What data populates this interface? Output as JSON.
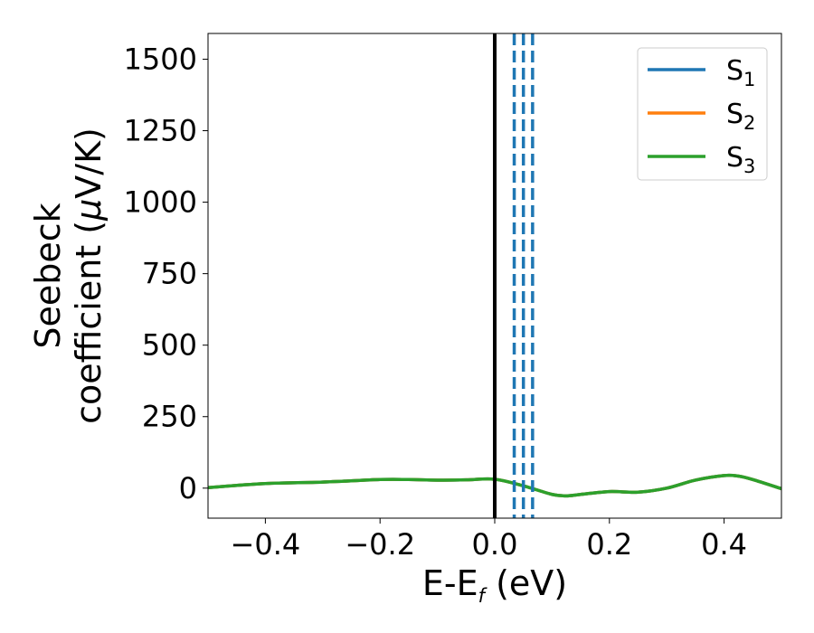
{
  "chart_data": {
    "type": "line",
    "xlabel_main": "E-E",
    "xlabel_sub": "f",
    "xlabel_unit": " (eV)",
    "ylabel_line1": "Seebeck",
    "ylabel_line2_prefix": "coefficient  (",
    "ylabel_mu": "μ",
    "ylabel_line2_suffix": "V/K)",
    "xlim": [
      -0.5,
      0.5
    ],
    "ylim": [
      -105,
      1590
    ],
    "x_ticks": [
      -0.4,
      -0.2,
      0.0,
      0.2,
      0.4
    ],
    "x_tick_labels": [
      "−0.4",
      "−0.2",
      "0.0",
      "0.2",
      "0.4"
    ],
    "y_ticks": [
      0,
      250,
      500,
      750,
      1000,
      1250,
      1500
    ],
    "y_tick_labels": [
      "0",
      "250",
      "500",
      "750",
      "1000",
      "1250",
      "1500"
    ],
    "grid": false,
    "legend_position": "top-right",
    "series": [
      {
        "name": "S",
        "name_sub": "1",
        "color": "#1f77b4",
        "x": [
          -0.5,
          -0.4,
          -0.3,
          -0.2,
          -0.15,
          -0.1,
          -0.05,
          0.0,
          0.05,
          0.1,
          0.125,
          0.15,
          0.2,
          0.25,
          0.3,
          0.35,
          0.4,
          0.425,
          0.45,
          0.5
        ],
        "y": [
          2,
          16,
          21,
          30,
          30,
          28,
          29,
          31,
          8,
          -22,
          -27,
          -22,
          -12,
          -14,
          0,
          28,
          44,
          42,
          30,
          -2
        ]
      },
      {
        "name": "S",
        "name_sub": "2",
        "color": "#ff7f0e",
        "x": [
          -0.5,
          -0.4,
          -0.3,
          -0.2,
          -0.15,
          -0.1,
          -0.05,
          0.0,
          0.05,
          0.1,
          0.125,
          0.15,
          0.2,
          0.25,
          0.3,
          0.35,
          0.4,
          0.425,
          0.45,
          0.5
        ],
        "y": [
          2,
          16,
          21,
          30,
          30,
          28,
          29,
          31,
          8,
          -22,
          -27,
          -22,
          -12,
          -14,
          0,
          28,
          44,
          42,
          30,
          -2
        ]
      },
      {
        "name": "S",
        "name_sub": "3",
        "color": "#2ca02c",
        "x": [
          -0.5,
          -0.4,
          -0.3,
          -0.2,
          -0.15,
          -0.1,
          -0.05,
          0.0,
          0.05,
          0.1,
          0.125,
          0.15,
          0.2,
          0.25,
          0.3,
          0.35,
          0.4,
          0.425,
          0.45,
          0.5
        ],
        "y": [
          2,
          16,
          21,
          30,
          30,
          28,
          29,
          31,
          8,
          -22,
          -27,
          -22,
          -12,
          -14,
          0,
          28,
          44,
          42,
          30,
          -2
        ]
      }
    ],
    "vlines": [
      {
        "x": 0.0,
        "style": "solid",
        "color": "#000000"
      },
      {
        "x": 0.034,
        "style": "dashed",
        "color": "#1f77b4"
      },
      {
        "x": 0.05,
        "style": "dashed",
        "color": "#1f77b4"
      },
      {
        "x": 0.066,
        "style": "dashed",
        "color": "#1f77b4"
      }
    ]
  }
}
